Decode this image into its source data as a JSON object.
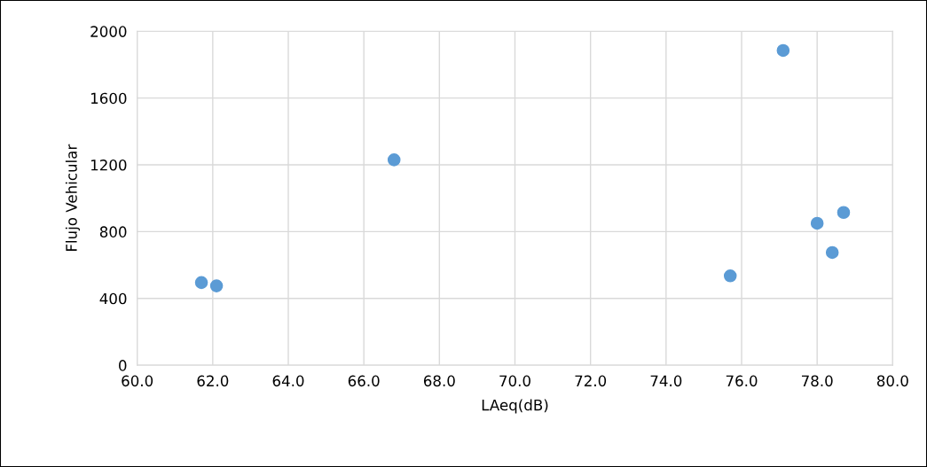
{
  "chart_data": {
    "type": "scatter",
    "xlabel": "LAeq(dB)",
    "ylabel": "Flujo Vehicular",
    "x": [
      61.7,
      62.1,
      66.8,
      75.7,
      77.1,
      78.0,
      78.4,
      78.7
    ],
    "series": [
      {
        "color": "#5b9bd5",
        "values": [
          495,
          475,
          1230,
          535,
          1885,
          850,
          675,
          915
        ]
      }
    ],
    "xlim": [
      60,
      80
    ],
    "xticks": [
      {
        "value": 60,
        "label": "60.0"
      },
      {
        "value": 62,
        "label": "62.0"
      },
      {
        "value": 64,
        "label": "64.0"
      },
      {
        "value": 66,
        "label": "66.0"
      },
      {
        "value": 68,
        "label": "68.0"
      },
      {
        "value": 70,
        "label": "70.0"
      },
      {
        "value": 72,
        "label": "72.0"
      },
      {
        "value": 74,
        "label": "74.0"
      },
      {
        "value": 76,
        "label": "76.0"
      },
      {
        "value": 78,
        "label": "78.0"
      },
      {
        "value": 80,
        "label": "80.0"
      }
    ],
    "ylim": [
      0,
      2000
    ],
    "yticks": [
      0,
      400,
      800,
      1200,
      1600,
      2000
    ],
    "grid": true,
    "marker": "circle"
  }
}
